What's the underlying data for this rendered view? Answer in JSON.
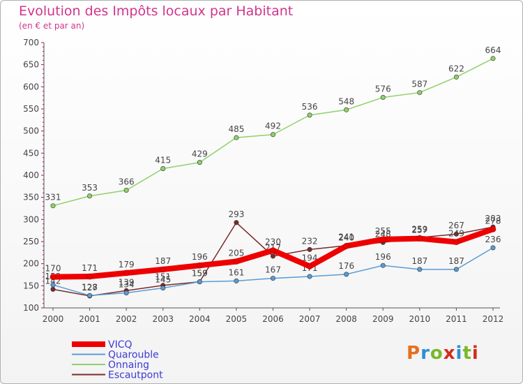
{
  "header": {
    "title": "Evolution des Impôts locaux par Habitant",
    "subtitle": "(en € et par an)"
  },
  "logo": {
    "text": "Proxiti",
    "colors": [
      "#e6701e",
      "#2b8fd6",
      "#7ab829",
      "#d52b1e",
      "#2b8fd6",
      "#7ab829",
      "#d52b1e"
    ]
  },
  "chart_data": {
    "type": "line",
    "title": "Evolution des Impôts locaux par Habitant",
    "subtitle": "(en € et par an)",
    "x": [
      "2000",
      "2001",
      "2002",
      "2003",
      "2004",
      "2005",
      "2006",
      "2007",
      "2008",
      "2009",
      "2010",
      "2011",
      "2012"
    ],
    "ylim": [
      100,
      700
    ],
    "yticks": [
      100,
      150,
      200,
      250,
      300,
      350,
      400,
      450,
      500,
      550,
      600,
      650,
      700
    ],
    "grid": false,
    "legend_position": "bottom-left",
    "series": [
      {
        "name": "Onnaing",
        "color": "#8fd16a",
        "values": [
          331,
          353,
          366,
          415,
          429,
          485,
          492,
          536,
          548,
          576,
          587,
          622,
          664
        ]
      },
      {
        "name": "Escautpont",
        "color": "#7a2b2b",
        "values": [
          142,
          127,
          139,
          151,
          159,
          293,
          217,
          232,
          241,
          248,
          259,
          267,
          283
        ]
      },
      {
        "name": "Quarouble",
        "color": "#5a9bd4",
        "values": [
          152,
          128,
          134,
          145,
          159,
          161,
          167,
          171,
          176,
          196,
          187,
          187,
          236
        ]
      },
      {
        "name": "VICQ",
        "color": "#ee0000",
        "values": [
          170,
          171,
          179,
          187,
          196,
          205,
          230,
          194,
          240,
          255,
          257,
          249,
          278
        ]
      }
    ],
    "label_values": {
      "Onnaing": [
        331,
        353,
        366,
        415,
        429,
        485,
        492,
        536,
        548,
        576,
        587,
        622,
        664
      ],
      "Escautpont": [
        142,
        127,
        139,
        151,
        159,
        293,
        217,
        232,
        241,
        248,
        259,
        267,
        283
      ],
      "Quarouble": [
        152,
        128,
        134,
        145,
        159,
        161,
        167,
        171,
        176,
        196,
        187,
        187,
        236
      ],
      "VICQ": [
        170,
        171,
        179,
        187,
        196,
        205,
        230,
        194,
        240,
        255,
        257,
        249,
        278
      ]
    }
  }
}
